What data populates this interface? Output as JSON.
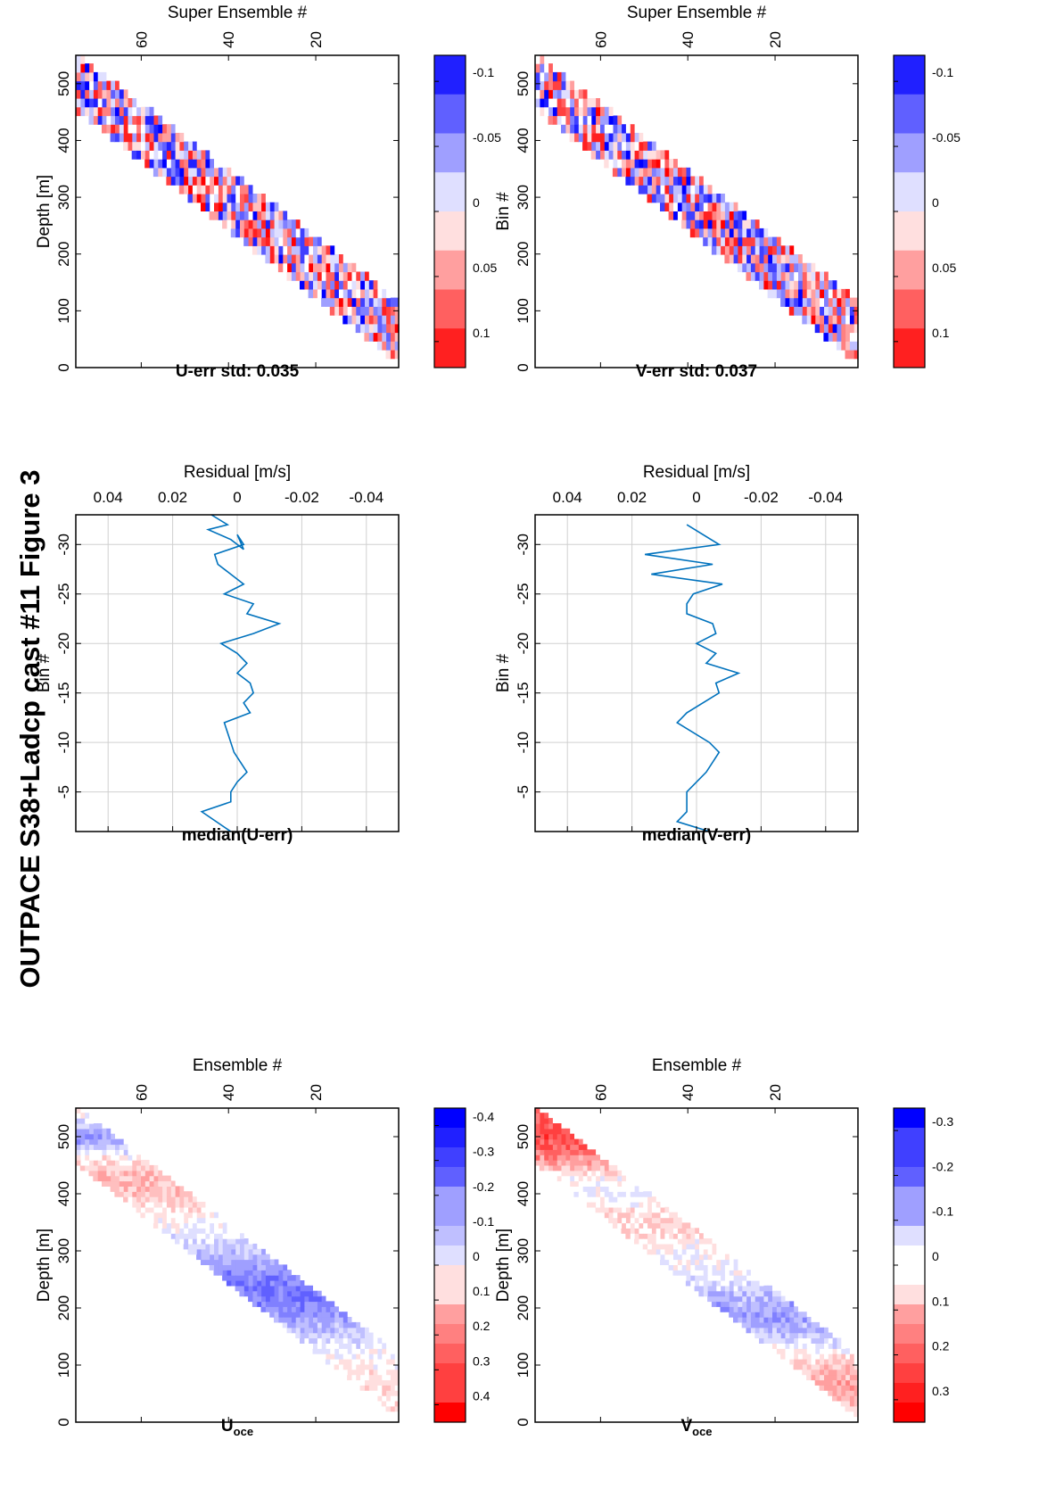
{
  "figure_title": "OUTPACE S38+Ladcp cast #11  Figure 3",
  "colors": {
    "positive": "#ff0000",
    "negative": "#0000ff",
    "line": "#0072bd",
    "grid": "#d0d0d0"
  },
  "chart_data": [
    {
      "type": "heatmap",
      "title": "U-err std: 0.035",
      "xlabel": "Super Ensemble #",
      "ylabel": "Depth [m]",
      "xlim": [
        1,
        75
      ],
      "ylim": [
        0,
        550
      ],
      "xticks": [
        20,
        40,
        60
      ],
      "yticks": [
        0,
        100,
        200,
        300,
        400,
        500
      ],
      "clim": [
        -0.12,
        0.12
      ],
      "colorbar_ticks": [
        "0.1",
        "0.05",
        "0",
        "-0.05",
        "-0.1"
      ],
      "colorbar_values": [
        0.1,
        0.05,
        0,
        -0.05,
        -0.1
      ]
    },
    {
      "type": "line",
      "title": "median(U-err)",
      "xlabel": "Residual [m/s]",
      "ylabel": "Bin #",
      "xlim": [
        -0.05,
        0.05
      ],
      "ylim": [
        -33,
        -1
      ],
      "xticks": [
        "-0.04",
        "-0.02",
        "0",
        "0.02",
        "0.04"
      ],
      "xtick_values": [
        -0.04,
        -0.02,
        0,
        0.02,
        0.04
      ],
      "yticks": [
        "-5",
        "-10",
        "-15",
        "-20",
        "-25",
        "-30"
      ],
      "ytick_values": [
        -5,
        -10,
        -15,
        -20,
        -25,
        -30
      ],
      "grid": true,
      "x": [
        0.002,
        0.011,
        0.002,
        0.002,
        0.0,
        -0.003,
        0.001,
        0.004,
        -0.004,
        -0.002,
        -0.005,
        -0.004,
        0.0,
        -0.003,
        0.0,
        0.005,
        -0.005,
        -0.013,
        -0.003,
        -0.005,
        0.004,
        -0.002,
        0.002,
        0.006,
        0.007,
        -0.002,
        0.0,
        -0.002,
        0.002,
        0.009,
        0.003,
        0.008
      ],
      "y": [
        -1,
        -3,
        -4,
        -5,
        -6,
        -7,
        -9,
        -12,
        -13,
        -14,
        -15,
        -16,
        -17,
        -18,
        -19,
        -20,
        -21,
        -22,
        -23,
        -24,
        -25,
        -26,
        -27,
        -28,
        -29,
        -30,
        -31,
        -29.5,
        -30.5,
        -31.5,
        -32,
        -33
      ]
    },
    {
      "type": "heatmap",
      "title": "U",
      "title_sub": "oce",
      "xlabel": "Ensemble #",
      "ylabel": "Depth [m]",
      "xlim": [
        1,
        75
      ],
      "ylim": [
        0,
        550
      ],
      "xticks": [
        20,
        40,
        60
      ],
      "yticks": [
        0,
        100,
        200,
        300,
        400,
        500
      ],
      "clim": [
        -0.45,
        0.45
      ],
      "colorbar_ticks": [
        "0.4",
        "0.3",
        "0.2",
        "0.1",
        "0",
        "-0.1",
        "-0.2",
        "-0.3",
        "-0.4"
      ],
      "colorbar_values": [
        0.4,
        0.3,
        0.2,
        0.1,
        0,
        -0.1,
        -0.2,
        -0.3,
        -0.4
      ]
    },
    {
      "type": "heatmap",
      "title": "V-err std: 0.037",
      "xlabel": "Super Ensemble #",
      "ylabel": "Bin #",
      "xlim": [
        1,
        75
      ],
      "ylim": [
        0,
        550
      ],
      "xticks": [
        20,
        40,
        60
      ],
      "yticks": [
        0,
        100,
        200,
        300,
        400,
        500
      ],
      "clim": [
        -0.12,
        0.12
      ],
      "colorbar_ticks": [
        "0.1",
        "0.05",
        "0",
        "-0.05",
        "-0.1"
      ],
      "colorbar_values": [
        0.1,
        0.05,
        0,
        -0.05,
        -0.1
      ]
    },
    {
      "type": "line",
      "title": "median(V-err)",
      "xlabel": "Residual [m/s]",
      "ylabel": "Bin #",
      "xlim": [
        -0.05,
        0.05
      ],
      "ylim": [
        -33,
        -1
      ],
      "xticks": [
        "-0.04",
        "-0.02",
        "0",
        "0.02",
        "0.04"
      ],
      "xtick_values": [
        -0.04,
        -0.02,
        0,
        0.02,
        0.04
      ],
      "yticks": [
        "-5",
        "-10",
        "-15",
        "-20",
        "-25",
        "-30"
      ],
      "ytick_values": [
        -5,
        -10,
        -15,
        -20,
        -25,
        -30
      ],
      "grid": true,
      "x": [
        -0.004,
        0.006,
        0.003,
        0.003,
        -0.003,
        -0.007,
        -0.004,
        0.006,
        0.003,
        -0.007,
        -0.006,
        -0.013,
        -0.003,
        -0.006,
        0.0,
        -0.006,
        -0.005,
        0.003,
        0.003,
        0.001,
        -0.008,
        0.014,
        -0.005,
        0.016,
        -0.007,
        0.003
      ],
      "y": [
        -1,
        -2,
        -3,
        -5,
        -7,
        -9,
        -10,
        -12,
        -13,
        -15,
        -16,
        -17,
        -18,
        -19,
        -20,
        -21,
        -22,
        -23,
        -24,
        -25,
        -26,
        -27,
        -28,
        -29,
        -30,
        -32
      ]
    },
    {
      "type": "heatmap",
      "title": "V",
      "title_sub": "oce",
      "xlabel": "Ensemble #",
      "ylabel": "Depth [m]",
      "xlim": [
        1,
        75
      ],
      "ylim": [
        0,
        550
      ],
      "xticks": [
        20,
        40,
        60
      ],
      "yticks": [
        0,
        100,
        200,
        300,
        400,
        500
      ],
      "clim": [
        -0.35,
        0.35
      ],
      "colorbar_ticks": [
        "0.3",
        "0.2",
        "0.1",
        "0",
        "-0.1",
        "-0.2",
        "-0.3"
      ],
      "colorbar_values": [
        0.3,
        0.2,
        0.1,
        0,
        -0.1,
        -0.2,
        -0.3
      ]
    }
  ]
}
